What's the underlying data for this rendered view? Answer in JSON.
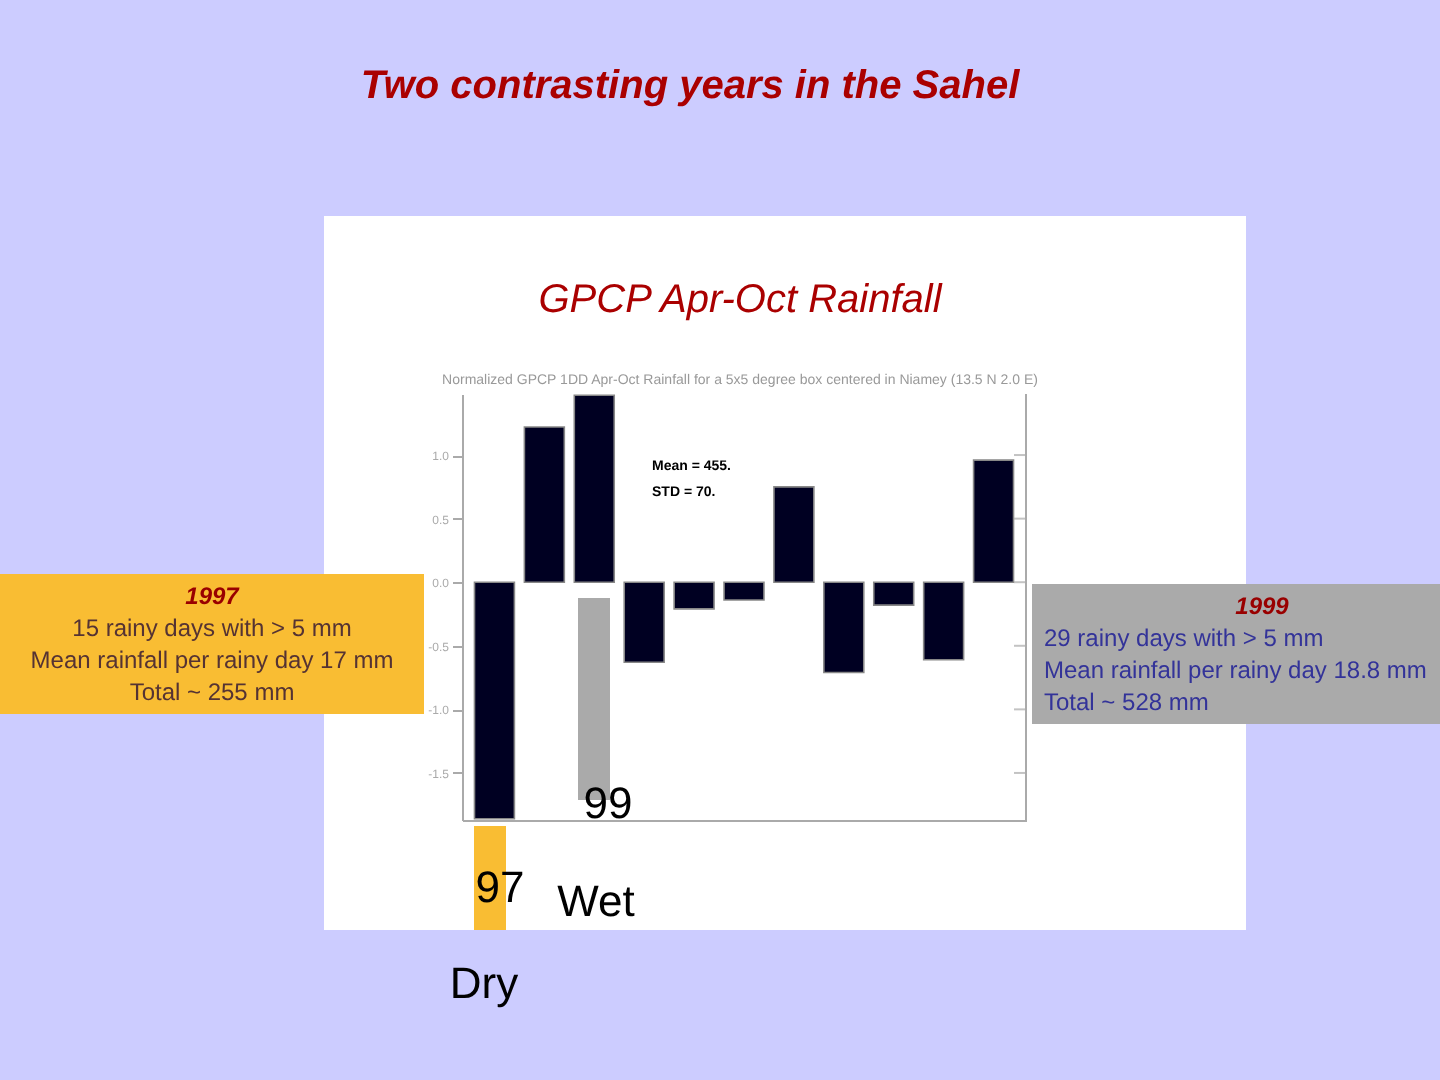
{
  "chart_data": {
    "type": "bar",
    "title": "Two contrasting years in the Sahel",
    "subtitle": "GPCP Apr-Oct Rainfall",
    "categories": [
      null,
      null,
      null,
      null,
      null,
      null,
      null,
      null,
      null,
      null,
      null
    ],
    "series": [
      {
        "color": "#000022",
        "values": [
          -1.86,
          1.22,
          1.47,
          -0.63,
          -0.21,
          -0.14,
          0.75,
          -0.71,
          -0.18,
          -0.61,
          0.96
        ]
      }
    ],
    "ylim": [
      -1.87,
      1.48
    ],
    "yticks": [
      {
        "value": -1.5,
        "label": "-1.5"
      },
      {
        "value": -1,
        "label": "-1.0"
      },
      {
        "value": -0.5,
        "label": "-0.5"
      },
      {
        "value": 0,
        "label": "0.0"
      },
      {
        "value": 0.5,
        "label": "0.5"
      },
      {
        "value": 1,
        "label": "1.0"
      }
    ],
    "annotations": [
      "Normalized GPCP 1DD Apr-Oct Rainfall for a 5x5 degree box centered in Niamey (13.5 N 2.0 E)",
      "Mean = 455.",
      "STD = 70.",
      "1997",
      "15 rainy days with > 5 mm",
      "Mean rainfall per rainy day 17 mm",
      "Total ~ 255 mm",
      "1999",
      "29 rainy days with > 5 mm",
      "Mean rainfall per rainy day 18.8 mm",
      "Total ~ 528 mm",
      "97",
      "Dry",
      "99",
      "Wet"
    ]
  }
}
